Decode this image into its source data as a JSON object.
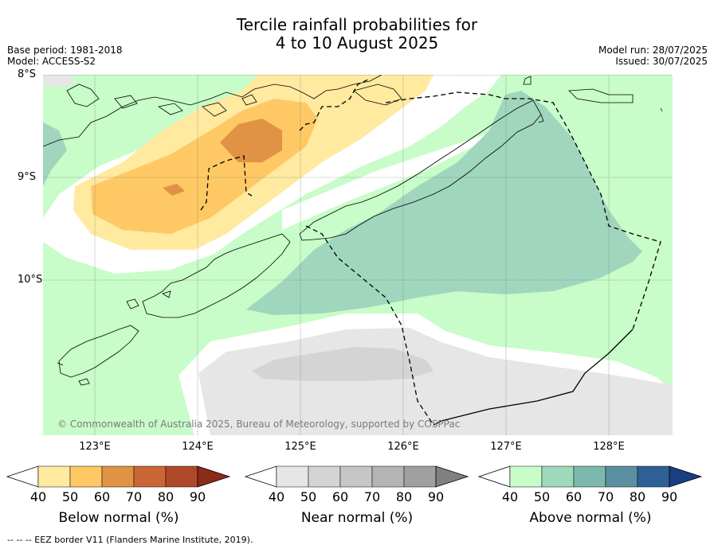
{
  "title_line1": "Tercile rainfall probabilities for",
  "title_line2": "4 to 10 August 2025",
  "base_period": "Base period: 1981-2018",
  "model": "Model: ACCESS-S2",
  "model_run": "Model run: 28/07/2025",
  "issued": "Issued: 30/07/2025",
  "lat_labels": [
    "8°S",
    "9°S",
    "10°S"
  ],
  "lon_labels": [
    "123°E",
    "124°E",
    "125°E",
    "126°E",
    "127°E",
    "128°E"
  ],
  "copyright": "© Commonwealth of Australia 2025, Bureau of Meteorology, supported by COSPPac",
  "footer": "-- -- -- EEZ border V11 (Flanders Marine Institute, 2019).",
  "colorbars": [
    {
      "title": "Below normal (%)",
      "ticks": [
        "40",
        "50",
        "60",
        "70",
        "80",
        "90"
      ],
      "colors": [
        "#ffffff",
        "#ffeaa0",
        "#fec964",
        "#e09344",
        "#cb6636",
        "#b0492a",
        "#8b2b1a"
      ]
    },
    {
      "title": "Near normal (%)",
      "ticks": [
        "40",
        "50",
        "60",
        "70",
        "80",
        "90"
      ],
      "colors": [
        "#ffffff",
        "#e6e6e6",
        "#d4d4d4",
        "#c6c6c6",
        "#b4b4b4",
        "#a0a0a0",
        "#808080"
      ]
    },
    {
      "title": "Above normal (%)",
      "ticks": [
        "40",
        "50",
        "60",
        "70",
        "80",
        "90"
      ],
      "colors": [
        "#ffffff",
        "#c8fcc8",
        "#a0d8bc",
        "#7db8ae",
        "#5a90a0",
        "#2e6096",
        "#1a3f80"
      ]
    }
  ]
}
